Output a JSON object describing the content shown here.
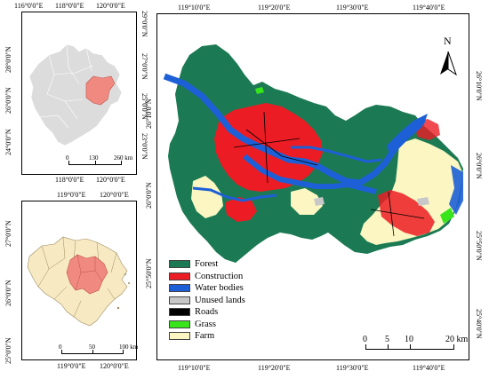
{
  "colors": {
    "forest": "#1b7a53",
    "construction": "#ec1c24",
    "water": "#1d5fd6",
    "unused": "#c8c8c8",
    "roads": "#000000",
    "grass": "#37e51a",
    "farm": "#fbf6c2",
    "province_fill": "#dcdcdc",
    "city_fill": "#f7eac2",
    "highlight": "#f08a80"
  },
  "inset1": {
    "top_ticks": [
      "116°0'0\"E",
      "118°0'0\"E",
      "120°0'0\"E"
    ],
    "bottom_ticks": [
      "118°0'0\"E",
      "120°0'0\"E"
    ],
    "left_ticks": [
      "28°0'0\"N",
      "26°0'0\"N",
      "24°0'0\"N"
    ],
    "right_ticks": [
      "29°0'0\"N",
      "27°0'0\"N",
      "25°0'0\"N",
      "23°0'0\"N"
    ],
    "scale_labels": [
      "0",
      "130",
      "260 km"
    ]
  },
  "inset2": {
    "top_ticks": [
      "119°0'0\"E",
      "120°0'0\"E"
    ],
    "bottom_ticks": [
      "119°0'0\"E",
      "120°0'0\"E"
    ],
    "left_ticks": [
      "27°0'0\"N",
      "26°0'0\"N",
      "25°0'0\"N"
    ],
    "scale_labels": [
      "0",
      "50",
      "100 km"
    ]
  },
  "main": {
    "top_ticks": [
      "119°10'0\"E",
      "119°20'0\"E",
      "119°30'0\"E",
      "119°40'0\"E"
    ],
    "bottom_ticks": [
      "119°10'0\"E",
      "119°20'0\"E",
      "119°30'0\"E",
      "119°40'0\"E"
    ],
    "left_ticks": [
      "26°10'0\"N",
      "26°0'0\"N",
      "25°50'0\"N"
    ],
    "right_ticks": [
      "26°10'0\"N",
      "26°0'0\"N",
      "25°50'0\"N",
      "25°40'0\"N"
    ],
    "north_label": "N",
    "scale_labels": [
      "0",
      "5",
      "10",
      "20 km"
    ]
  },
  "legend": [
    {
      "label": "Forest",
      "color": "#1b7a53"
    },
    {
      "label": "Construction",
      "color": "#ec1c24"
    },
    {
      "label": "Water bodies",
      "color": "#1d5fd6"
    },
    {
      "label": "Unused lands",
      "color": "#c8c8c8"
    },
    {
      "label": "Roads",
      "color": "#000000"
    },
    {
      "label": "Grass",
      "color": "#37e51a"
    },
    {
      "label": "Farm",
      "color": "#fbf6c2"
    }
  ]
}
